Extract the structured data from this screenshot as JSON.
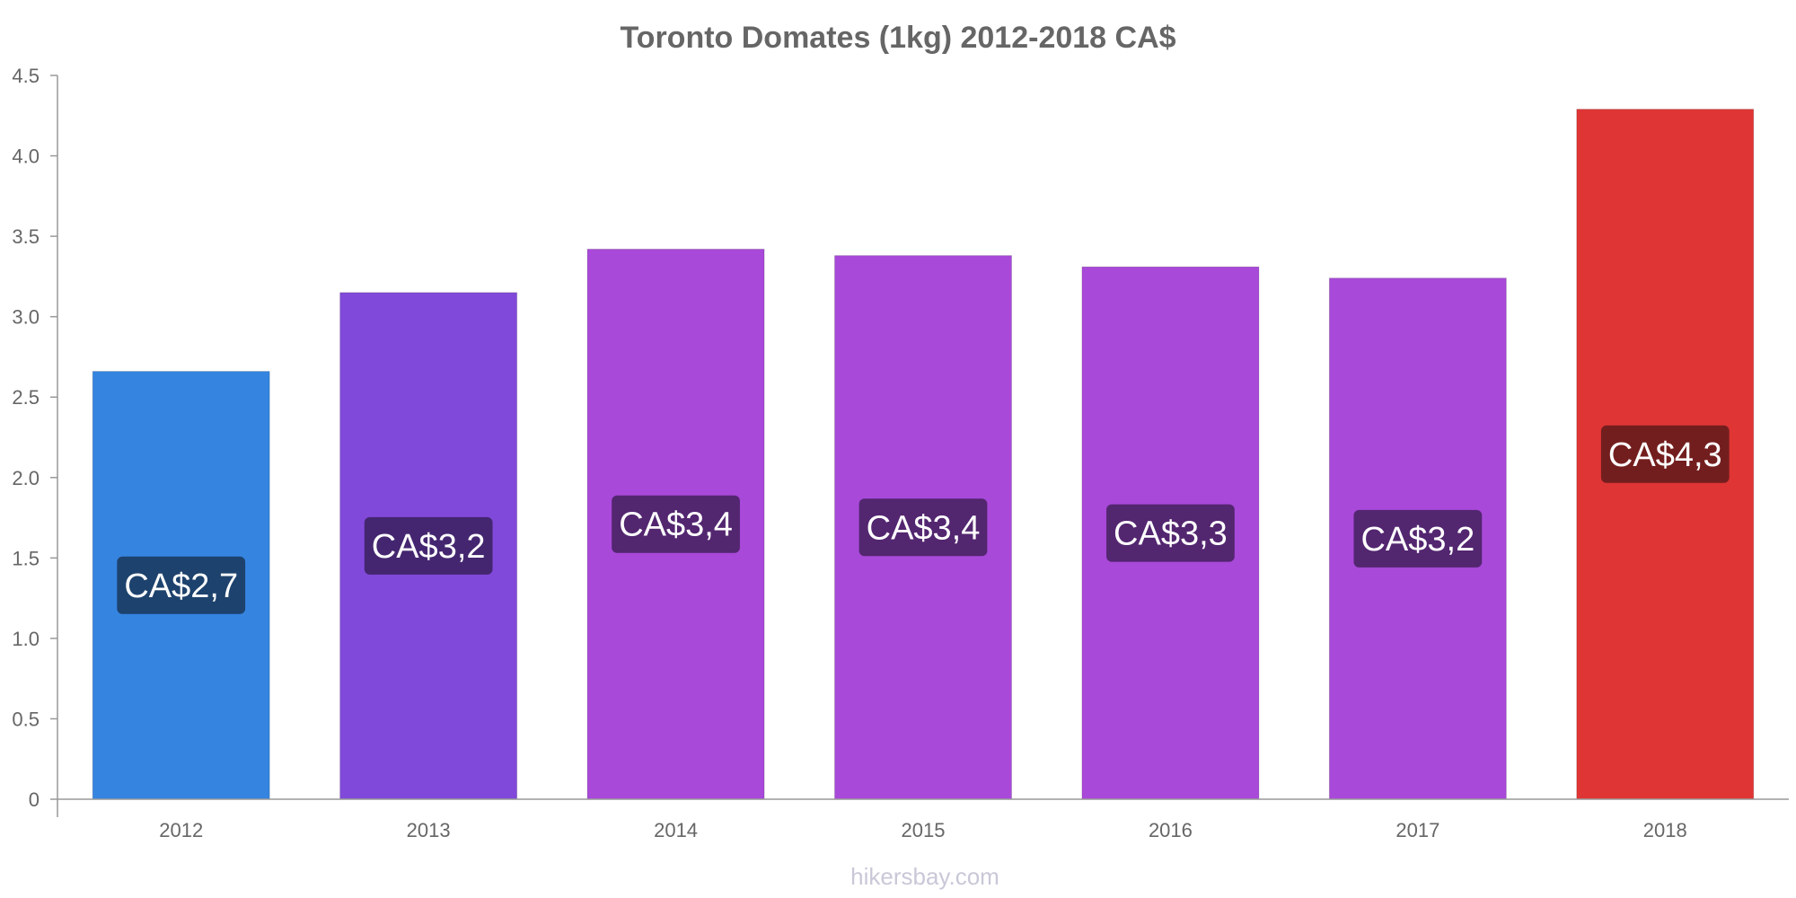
{
  "chart_data": {
    "type": "bar",
    "title": "Toronto Domates (1kg) 2012-2018 CA$",
    "xlabel": "",
    "ylabel": "",
    "categories": [
      "2012",
      "2013",
      "2014",
      "2015",
      "2016",
      "2017",
      "2018"
    ],
    "values": [
      2.66,
      3.15,
      3.42,
      3.38,
      3.31,
      3.24,
      4.29
    ],
    "data_labels": [
      "CA$2,7",
      "CA$3,2",
      "CA$3,4",
      "CA$3,4",
      "CA$3,3",
      "CA$3,2",
      "CA$4,3"
    ],
    "ylim": [
      0,
      4.5
    ],
    "yticks": [
      "0",
      "0.5",
      "1.0",
      "1.5",
      "2.0",
      "2.5",
      "3.0",
      "3.5",
      "4.0",
      "4.5"
    ],
    "grid": false,
    "legend": "none",
    "bar_colors": [
      "#3584e0",
      "#8149d9",
      "#a849d9",
      "#a849d9",
      "#a849d9",
      "#a849d9",
      "#e03535"
    ],
    "label_colors": [
      "#1d426d",
      "#442670",
      "#532670",
      "#532670",
      "#532670",
      "#532670",
      "#731e1e"
    ],
    "axis_color": "#999999",
    "text_color": "#666666"
  },
  "credit": "hikersbay.com"
}
